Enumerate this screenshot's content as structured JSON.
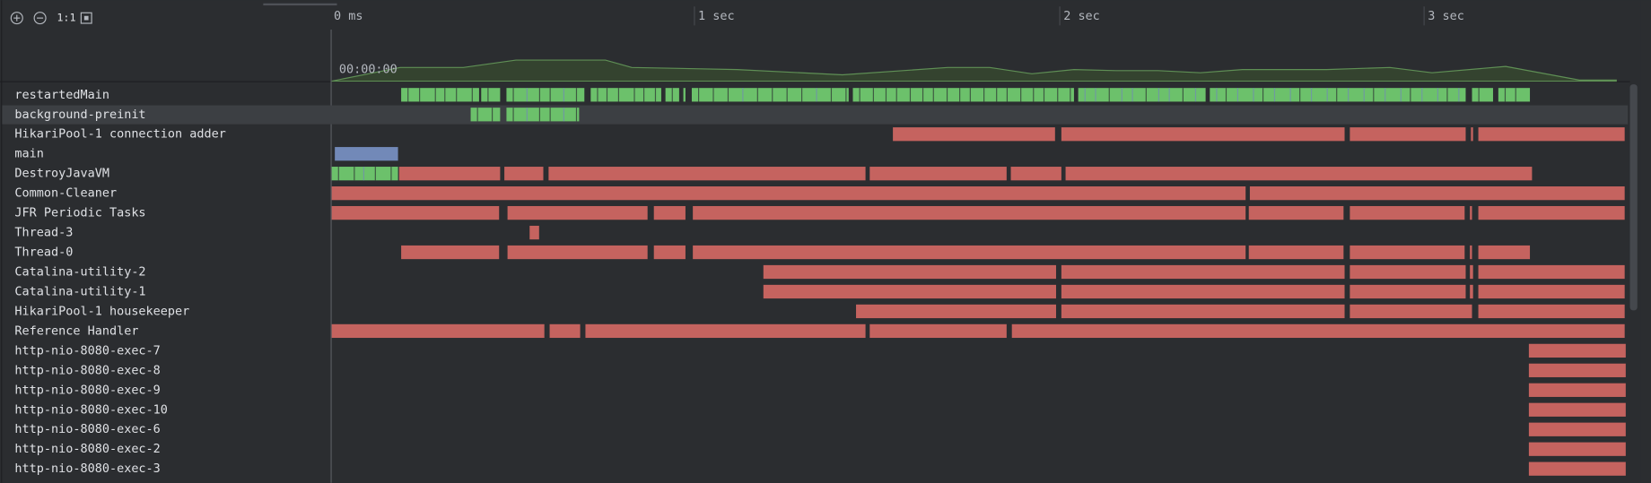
{
  "toolbar": {
    "zoom_reset": "1:1"
  },
  "timeline": {
    "ticks": [
      "0 ms",
      "1 sec",
      "2 sec",
      "3 sec"
    ],
    "overview_time": "00:00:00"
  },
  "threads": [
    "restartedMain",
    "background-preinit",
    "HikariPool-1 connection adder",
    "main",
    "DestroyJavaVM",
    "Common-Cleaner",
    "JFR Periodic Tasks",
    "Thread-3",
    "Thread-0",
    "Catalina-utility-2",
    "Catalina-utility-1",
    "HikariPool-1 housekeeper",
    "Reference Handler",
    "http-nio-8080-exec-7",
    "http-nio-8080-exec-8",
    "http-nio-8080-exec-9",
    "http-nio-8080-exec-10",
    "http-nio-8080-exec-6",
    "http-nio-8080-exec-2",
    "http-nio-8080-exec-3"
  ]
}
